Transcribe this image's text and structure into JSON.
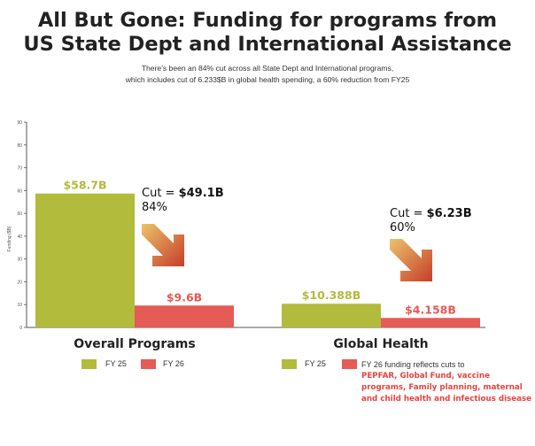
{
  "title_line1": "All But Gone: Funding for programs from",
  "title_line2": "US State Dept and International Assistance",
  "subtitle_line1": "There's been an 84% cut across all State Dept and International programs,",
  "subtitle_line2": "which includes cut of 6.233$B in global health spending, a 60% reduction from FY25",
  "colors": {
    "fy25": "#b3bb3c",
    "fy26": "#e55b56",
    "cut_text_red": "#e8423e",
    "axis": "#555555",
    "arrow_dark": "#c63d2a",
    "arrow_light": "#ecc36a"
  },
  "icons": [
    "down-right-arrow-icon"
  ],
  "chart_data": {
    "type": "bar",
    "ylabel": "Funding ($B)",
    "ylim": [
      0,
      90
    ],
    "y_ticks": [
      "0",
      "10",
      "20",
      "30",
      "40",
      "50",
      "60",
      "70",
      "80",
      "90"
    ],
    "categories": [
      "Overall Programs",
      "Global Health"
    ],
    "series": [
      {
        "name": "FY 25",
        "values": [
          58.7,
          10.388
        ],
        "labels": [
          "$58.7B",
          "$10.388B"
        ]
      },
      {
        "name": "FY 26",
        "values": [
          9.6,
          4.158
        ],
        "labels": [
          "$9.6B",
          "$4.158B"
        ]
      }
    ],
    "annotations": [
      {
        "prefix": "Cut = ",
        "amount": "$49.1B",
        "percent": "84%"
      },
      {
        "prefix": "Cut = ",
        "amount": "$6.23B",
        "percent": "60%"
      }
    ],
    "grid": false,
    "legend_placement": "bottom"
  },
  "legend_left": {
    "fy25": "FY 25",
    "fy26": "FY 26"
  },
  "legend_right": {
    "fy25": "FY 25",
    "fy26_lead": "FY 26 funding reflects cuts to",
    "fy26_programs": "PEPFAR, Global Fund, vaccine programs, Family planning, maternal and child health and infectious disease"
  }
}
